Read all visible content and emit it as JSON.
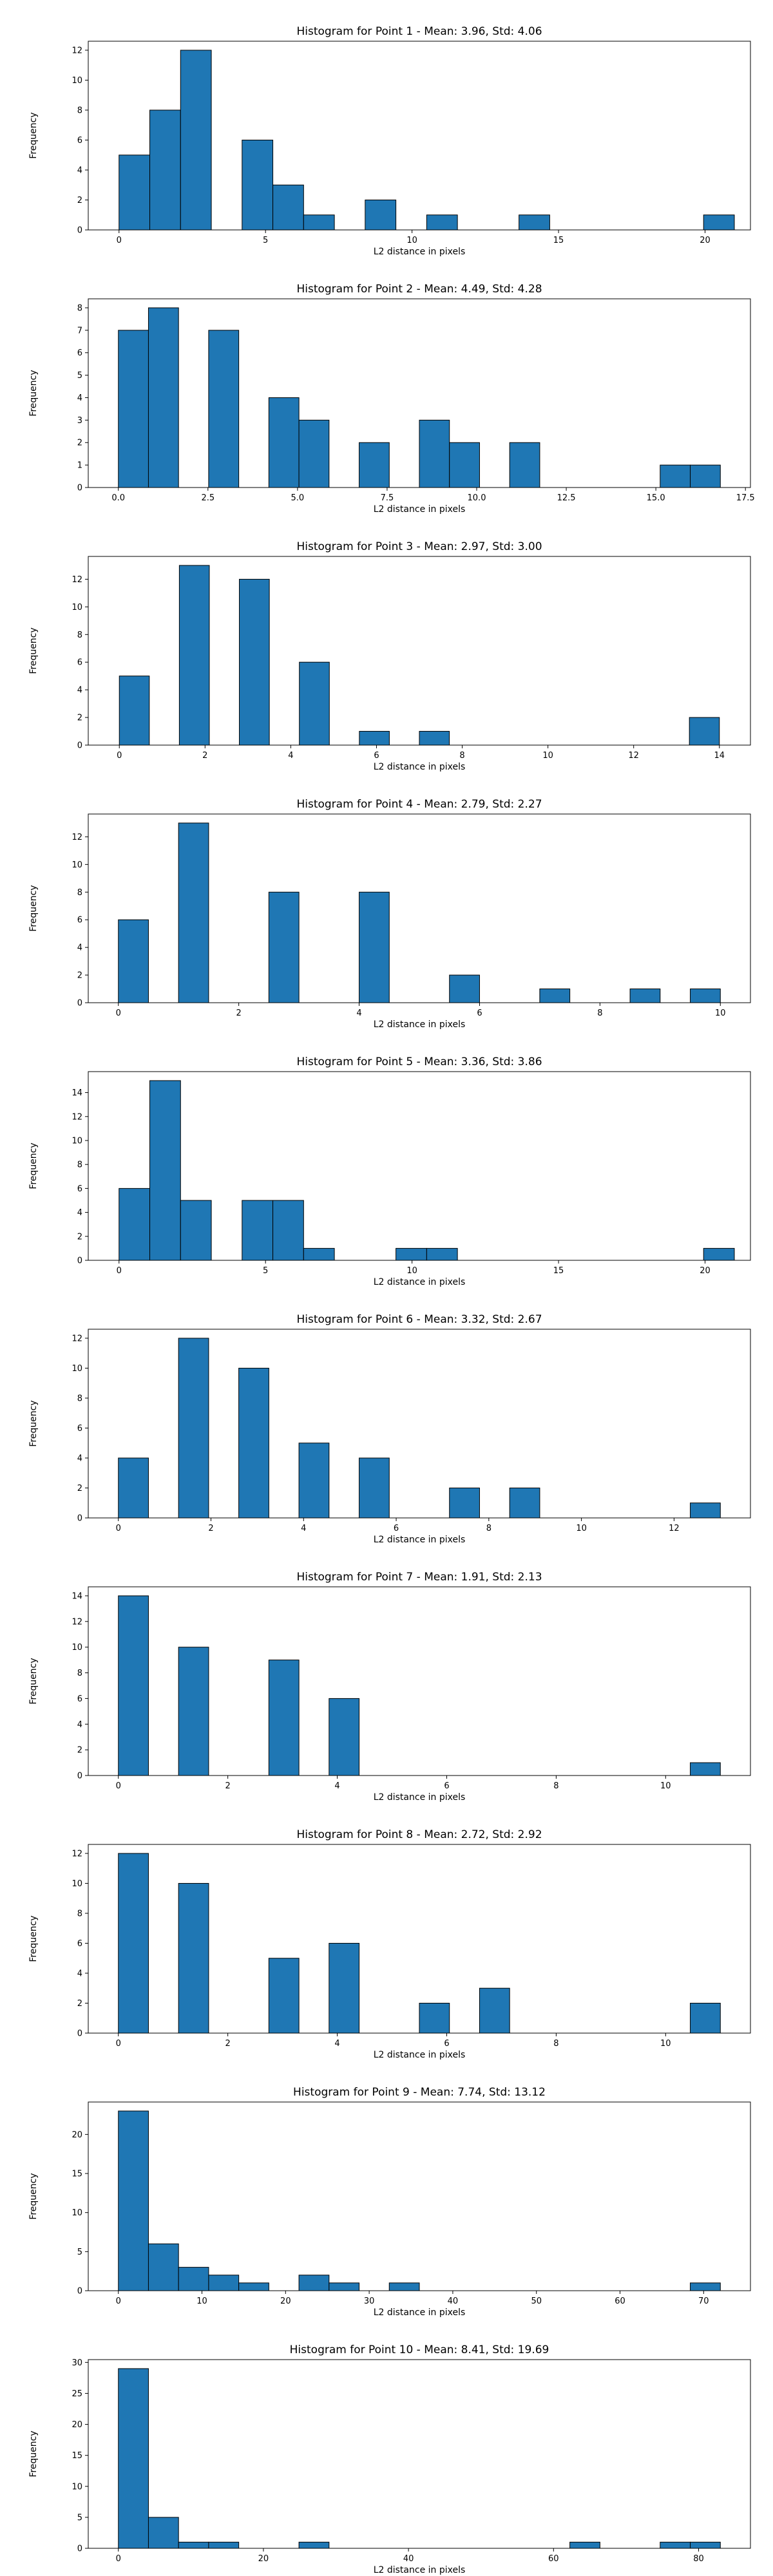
{
  "style": {
    "bar_color": "#1f77b4",
    "edge_color": "#000000",
    "background": "#ffffff"
  },
  "chart_data": [
    {
      "type": "bar",
      "title": "Histogram for Point 1 - Mean: 3.96, Std: 4.06",
      "xlabel": "L2 distance in pixels",
      "ylabel": "Frequency",
      "xlim": [
        -1.05,
        21.55
      ],
      "ylim": [
        0,
        12.6
      ],
      "xticks": [
        0,
        5,
        10,
        15,
        20
      ],
      "xtick_labels": [
        "0",
        "5",
        "10",
        "15",
        "20"
      ],
      "yticks": [
        0,
        2,
        4,
        6,
        8,
        10,
        12
      ],
      "bin_edges": [
        0,
        1.05,
        2.1,
        3.15,
        4.2,
        5.25,
        6.3,
        7.35,
        8.4,
        9.45,
        10.5,
        11.55,
        12.6,
        13.65,
        14.7,
        15.75,
        16.8,
        17.85,
        18.9,
        19.95,
        21
      ],
      "counts": [
        5,
        8,
        12,
        0,
        6,
        3,
        1,
        0,
        2,
        0,
        1,
        0,
        0,
        1,
        0,
        0,
        0,
        0,
        0,
        1
      ]
    },
    {
      "type": "bar",
      "title": "Histogram for Point 2 - Mean: 4.49, Std: 4.28",
      "xlabel": "L2 distance in pixels",
      "ylabel": "Frequency",
      "xlim": [
        -0.84,
        17.64
      ],
      "ylim": [
        0,
        8.4
      ],
      "xticks": [
        0,
        2.5,
        5,
        7.5,
        10,
        12.5,
        15,
        17.5
      ],
      "xtick_labels": [
        "0.0",
        "2.5",
        "5.0",
        "7.5",
        "10.0",
        "12.5",
        "15.0",
        "17.5"
      ],
      "yticks": [
        0,
        1,
        2,
        3,
        4,
        5,
        6,
        7,
        8
      ],
      "bin_edges": [
        0,
        0.84,
        1.68,
        2.52,
        3.36,
        4.2,
        5.04,
        5.88,
        6.72,
        7.56,
        8.4,
        9.24,
        10.08,
        10.92,
        11.76,
        12.6,
        13.44,
        14.28,
        15.12,
        15.96,
        16.8
      ],
      "counts": [
        7,
        8,
        0,
        7,
        0,
        4,
        3,
        0,
        2,
        0,
        3,
        2,
        0,
        2,
        0,
        0,
        0,
        0,
        1,
        1
      ]
    },
    {
      "type": "bar",
      "title": "Histogram for Point 3 - Mean: 2.97, Std: 3.00",
      "xlabel": "L2 distance in pixels",
      "ylabel": "Frequency",
      "xlim": [
        -0.725,
        14.725
      ],
      "ylim": [
        0,
        13.65
      ],
      "xticks": [
        0,
        2,
        4,
        6,
        8,
        10,
        12,
        14
      ],
      "xtick_labels": [
        "0",
        "2",
        "4",
        "6",
        "8",
        "10",
        "12",
        "14"
      ],
      "yticks": [
        0,
        2,
        4,
        6,
        8,
        10,
        12
      ],
      "bin_edges": [
        0,
        0.7,
        1.4,
        2.1,
        2.8,
        3.5,
        4.2,
        4.9,
        5.6,
        6.3,
        7.0,
        7.7,
        8.4,
        9.1,
        9.8,
        10.5,
        11.2,
        11.9,
        12.6,
        13.3,
        14.0
      ],
      "counts": [
        5,
        0,
        13,
        0,
        12,
        0,
        6,
        0,
        1,
        0,
        1,
        0,
        0,
        0,
        0,
        0,
        0,
        0,
        0,
        2
      ]
    },
    {
      "type": "bar",
      "title": "Histogram for Point 4 - Mean: 2.79, Std: 2.27",
      "xlabel": "L2 distance in pixels",
      "ylabel": "Frequency",
      "xlim": [
        -0.5,
        10.5
      ],
      "ylim": [
        0,
        13.65
      ],
      "xticks": [
        0,
        2,
        4,
        6,
        8,
        10
      ],
      "xtick_labels": [
        "0",
        "2",
        "4",
        "6",
        "8",
        "10"
      ],
      "yticks": [
        0,
        2,
        4,
        6,
        8,
        10,
        12
      ],
      "bin_edges": [
        0,
        0.5,
        1.0,
        1.5,
        2.0,
        2.5,
        3.0,
        3.5,
        4.0,
        4.5,
        5.0,
        5.5,
        6.0,
        6.5,
        7.0,
        7.5,
        8.0,
        8.5,
        9.0,
        9.5,
        10.0
      ],
      "counts": [
        6,
        0,
        13,
        0,
        0,
        8,
        0,
        0,
        8,
        0,
        0,
        2,
        0,
        0,
        1,
        0,
        0,
        1,
        0,
        1
      ]
    },
    {
      "type": "bar",
      "title": "Histogram for Point 5 - Mean: 3.36, Std: 3.86",
      "xlabel": "L2 distance in pixels",
      "ylabel": "Frequency",
      "xlim": [
        -1.05,
        21.55
      ],
      "ylim": [
        0,
        15.75
      ],
      "xticks": [
        0,
        5,
        10,
        15,
        20
      ],
      "xtick_labels": [
        "0",
        "5",
        "10",
        "15",
        "20"
      ],
      "yticks": [
        0,
        2,
        4,
        6,
        8,
        10,
        12,
        14
      ],
      "bin_edges": [
        0,
        1.05,
        2.1,
        3.15,
        4.2,
        5.25,
        6.3,
        7.35,
        8.4,
        9.45,
        10.5,
        11.55,
        12.6,
        13.65,
        14.7,
        15.75,
        16.8,
        17.85,
        18.9,
        19.95,
        21
      ],
      "counts": [
        6,
        15,
        5,
        0,
        5,
        5,
        1,
        0,
        0,
        1,
        1,
        0,
        0,
        0,
        0,
        0,
        0,
        0,
        0,
        1
      ]
    },
    {
      "type": "bar",
      "title": "Histogram for Point 6 - Mean: 3.32, Std: 2.67",
      "xlabel": "L2 distance in pixels",
      "ylabel": "Frequency",
      "xlim": [
        -0.65,
        13.65
      ],
      "ylim": [
        0,
        12.6
      ],
      "xticks": [
        0,
        2,
        4,
        6,
        8,
        10,
        12
      ],
      "xtick_labels": [
        "0",
        "2",
        "4",
        "6",
        "8",
        "10",
        "12"
      ],
      "yticks": [
        0,
        2,
        4,
        6,
        8,
        10,
        12
      ],
      "bin_edges": [
        0,
        0.65,
        1.3,
        1.95,
        2.6,
        3.25,
        3.9,
        4.55,
        5.2,
        5.85,
        6.5,
        7.15,
        7.8,
        8.45,
        9.1,
        9.75,
        10.4,
        11.05,
        11.7,
        12.35,
        13.0
      ],
      "counts": [
        4,
        0,
        12,
        0,
        10,
        0,
        5,
        0,
        4,
        0,
        0,
        2,
        0,
        2,
        0,
        0,
        0,
        0,
        0,
        1
      ]
    },
    {
      "type": "bar",
      "title": "Histogram for Point 7 - Mean: 1.91, Std: 2.13",
      "xlabel": "L2 distance in pixels",
      "ylabel": "Frequency",
      "xlim": [
        -0.55,
        11.55
      ],
      "ylim": [
        0,
        14.7
      ],
      "xticks": [
        0,
        2,
        4,
        6,
        8,
        10
      ],
      "xtick_labels": [
        "0",
        "2",
        "4",
        "6",
        "8",
        "10"
      ],
      "yticks": [
        0,
        2,
        4,
        6,
        8,
        10,
        12,
        14
      ],
      "bin_edges": [
        0,
        0.55,
        1.1,
        1.65,
        2.2,
        2.75,
        3.3,
        3.85,
        4.4,
        4.95,
        5.5,
        6.05,
        6.6,
        7.15,
        7.7,
        8.25,
        8.8,
        9.35,
        9.9,
        10.45,
        11.0
      ],
      "counts": [
        14,
        0,
        10,
        0,
        0,
        9,
        0,
        6,
        0,
        0,
        0,
        0,
        0,
        0,
        0,
        0,
        0,
        0,
        0,
        1
      ]
    },
    {
      "type": "bar",
      "title": "Histogram for Point 8 - Mean: 2.72, Std: 2.92",
      "xlabel": "L2 distance in pixels",
      "ylabel": "Frequency",
      "xlim": [
        -0.55,
        11.55
      ],
      "ylim": [
        0,
        12.6
      ],
      "xticks": [
        0,
        2,
        4,
        6,
        8,
        10
      ],
      "xtick_labels": [
        "0",
        "2",
        "4",
        "6",
        "8",
        "10"
      ],
      "yticks": [
        0,
        2,
        4,
        6,
        8,
        10,
        12
      ],
      "bin_edges": [
        0,
        0.55,
        1.1,
        1.65,
        2.2,
        2.75,
        3.3,
        3.85,
        4.4,
        4.95,
        5.5,
        6.05,
        6.6,
        7.15,
        7.7,
        8.25,
        8.8,
        9.35,
        9.9,
        10.45,
        11.0
      ],
      "counts": [
        12,
        0,
        10,
        0,
        0,
        5,
        0,
        6,
        0,
        0,
        2,
        0,
        3,
        0,
        0,
        0,
        0,
        0,
        0,
        2
      ]
    },
    {
      "type": "bar",
      "title": "Histogram for Point 9 - Mean: 7.74, Std: 13.12",
      "xlabel": "L2 distance in pixels",
      "ylabel": "Frequency",
      "xlim": [
        -3.6,
        75.6
      ],
      "ylim": [
        0,
        24.15
      ],
      "xticks": [
        0,
        10,
        20,
        30,
        40,
        50,
        60,
        70
      ],
      "xtick_labels": [
        "0",
        "10",
        "20",
        "30",
        "40",
        "50",
        "60",
        "70"
      ],
      "yticks": [
        0,
        5,
        10,
        15,
        20
      ],
      "bin_edges": [
        0,
        3.6,
        7.2,
        10.8,
        14.4,
        18.0,
        21.6,
        25.2,
        28.8,
        32.4,
        36.0,
        39.6,
        43.2,
        46.8,
        50.4,
        54.0,
        57.6,
        61.2,
        64.8,
        68.4,
        72.0
      ],
      "counts": [
        23,
        6,
        3,
        2,
        1,
        0,
        2,
        1,
        0,
        1,
        0,
        0,
        0,
        0,
        0,
        0,
        0,
        0,
        0,
        1
      ]
    },
    {
      "type": "bar",
      "title": "Histogram for Point 10 - Mean: 8.41, Std: 19.69",
      "xlabel": "L2 distance in pixels",
      "ylabel": "Frequency",
      "xlim": [
        -4.15,
        87.15
      ],
      "ylim": [
        0,
        30.45
      ],
      "xticks": [
        0,
        20,
        40,
        60,
        80
      ],
      "xtick_labels": [
        "0",
        "20",
        "40",
        "60",
        "80"
      ],
      "yticks": [
        0,
        5,
        10,
        15,
        20,
        25,
        30
      ],
      "bin_edges": [
        0,
        4.15,
        8.3,
        12.45,
        16.6,
        20.75,
        24.9,
        29.05,
        33.2,
        37.35,
        41.5,
        45.65,
        49.8,
        53.95,
        58.1,
        62.25,
        66.4,
        70.55,
        74.7,
        78.85,
        83.0
      ],
      "counts": [
        29,
        5,
        1,
        1,
        0,
        0,
        1,
        0,
        0,
        0,
        0,
        0,
        0,
        0,
        0,
        1,
        0,
        0,
        1,
        1
      ]
    }
  ]
}
